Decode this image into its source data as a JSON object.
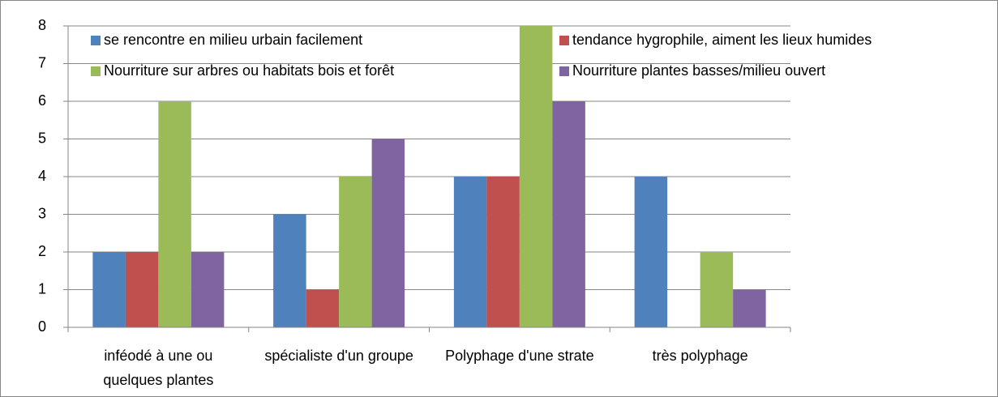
{
  "chart_data": {
    "type": "bar",
    "categories": [
      "inféodé à une ou quelques plantes",
      "spécialiste d'un groupe",
      "Polyphage d'une strate",
      "très polyphage"
    ],
    "series": [
      {
        "name": "se rencontre en milieu urbain facilement",
        "color": "#4f81bd",
        "values": [
          2,
          3,
          4,
          4
        ]
      },
      {
        "name": "tendance hygrophile, aiment les lieux humides",
        "color": "#c0504d",
        "values": [
          2,
          1,
          4,
          0
        ]
      },
      {
        "name": "Nourriture sur arbres ou habitats bois et forêt",
        "color": "#9bbb59",
        "values": [
          6,
          4,
          8,
          2
        ]
      },
      {
        "name": "Nourriture plantes basses/milieu ouvert",
        "color": "#8064a2",
        "values": [
          2,
          5,
          6,
          1
        ]
      }
    ],
    "ylim": [
      0,
      8
    ],
    "yticks": [
      0,
      1,
      2,
      3,
      4,
      5,
      6,
      7,
      8
    ],
    "grid": true
  }
}
